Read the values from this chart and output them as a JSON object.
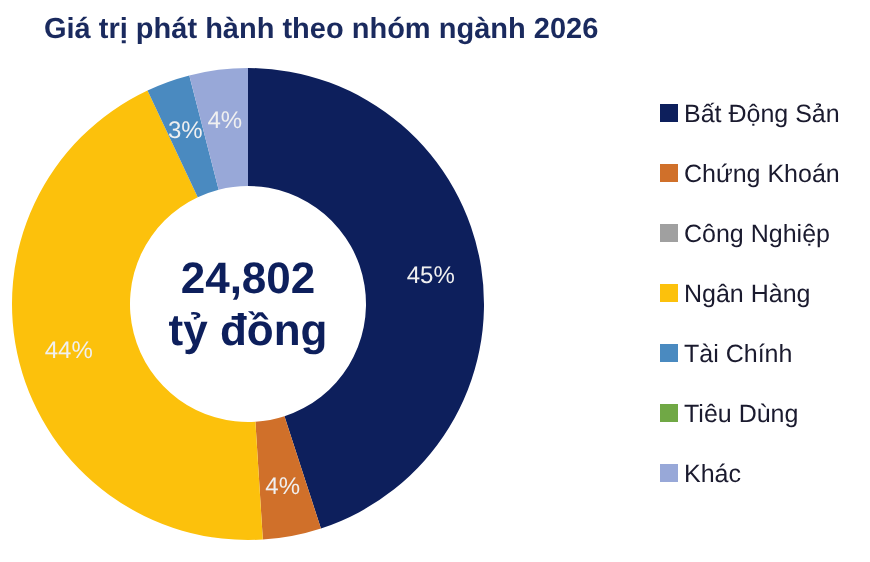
{
  "chart_data": {
    "type": "donut",
    "title": "Giá trị phát hành theo nhóm ngành 2026",
    "categories": [
      "Bất Động Sản",
      "Chứng Khoán",
      "Công Nghiệp",
      "Ngân Hàng",
      "Tài Chính",
      "Tiêu Dùng",
      "Khác"
    ],
    "values": [
      45,
      4,
      0,
      44,
      3,
      0,
      4
    ],
    "colors": [
      "#0d1f5c",
      "#d0702a",
      "#a0a0a0",
      "#fcc10c",
      "#4a8ac0",
      "#70a845",
      "#98a8d8"
    ],
    "value_labels": [
      "45%",
      "4%",
      null,
      "44%",
      "3%",
      null,
      "4%"
    ],
    "annotations": [
      "24,802",
      "tỷ đồng"
    ],
    "legend": "right"
  }
}
